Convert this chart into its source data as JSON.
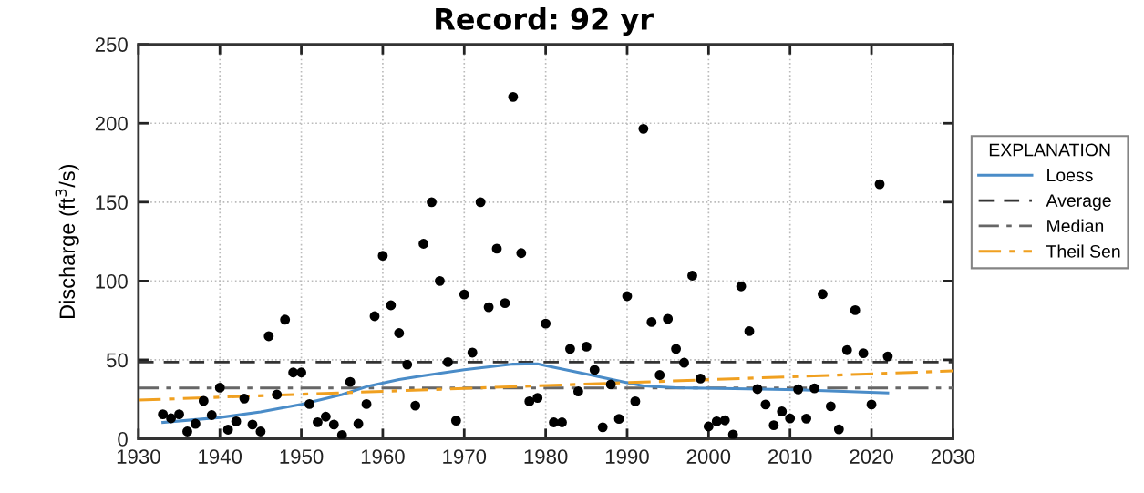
{
  "chart_data": {
    "type": "scatter",
    "title": "Record: 92 yr",
    "ylabel": "Discharge (ft$^{3}$/s)",
    "legend_title": "EXPLANATION",
    "xlim": [
      1930,
      2030
    ],
    "xticks": [
      1930,
      1940,
      1950,
      1960,
      1970,
      1980,
      1990,
      2000,
      2010,
      2020,
      2030
    ],
    "ylim": [
      0,
      250
    ],
    "yticks": [
      0,
      50,
      100,
      150,
      200,
      250
    ],
    "grid": true,
    "legend": "right",
    "series": [
      {
        "color": "#000000",
        "marker": "circle",
        "x": [
          1933,
          1934,
          1935,
          1936,
          1937,
          1938,
          1939,
          1940,
          1941,
          1942,
          1943,
          1944,
          1945,
          1946,
          1947,
          1948,
          1949,
          1950,
          1951,
          1952,
          1953,
          1954,
          1955,
          1956,
          1957,
          1958,
          1959,
          1960,
          1961,
          1962,
          1963,
          1964,
          1965,
          1966,
          1967,
          1968,
          1969,
          1970,
          1971,
          1972,
          1973,
          1974,
          1975,
          1976,
          1977,
          1978,
          1979,
          1980,
          1981,
          1982,
          1983,
          1984,
          1985,
          1986,
          1987,
          1988,
          1989,
          1990,
          1991,
          1992,
          1993,
          1994,
          1995,
          1996,
          1997,
          1998,
          1999,
          2000,
          2001,
          2002,
          2003,
          2004,
          2005,
          2006,
          2007,
          2008,
          2009,
          2010,
          2011,
          2012,
          2013,
          2014,
          2015,
          2016,
          2017,
          2018,
          2019,
          2020,
          2021,
          2022
        ],
        "values": [
          15.5,
          13,
          15.5,
          4.6,
          9.5,
          24,
          15,
          32.4,
          5.8,
          11,
          25.5,
          9,
          4.6,
          65,
          28,
          75.5,
          42,
          42,
          22,
          10.5,
          14,
          9,
          2.4,
          36,
          9.5,
          22,
          77.7,
          116,
          84.6,
          67,
          47,
          21,
          123.6,
          150,
          100,
          48.6,
          11.5,
          91.5,
          54.6,
          150,
          83.4,
          120.5,
          86,
          216.7,
          117.7,
          23.7,
          25.9,
          73,
          10.4,
          10.4,
          57,
          30,
          58.4,
          43.7,
          7.3,
          34.4,
          12.6,
          90.4,
          23.7,
          196.5,
          74,
          40.4,
          76,
          57,
          48.2,
          103.4,
          38.2,
          7.8,
          11,
          11.7,
          2.7,
          96.6,
          68.2,
          31.5,
          21.7,
          8.6,
          17.3,
          12.9,
          31.3,
          12.8,
          32,
          91.7,
          20.6,
          6,
          56.2,
          81.5,
          54.2,
          21.7,
          161.4,
          52.2
        ]
      },
      {
        "type": "line",
        "name": "Loess",
        "color": "#4a8cc8",
        "line_style": "solid",
        "x": [
          1933,
          1940,
          1945,
          1950,
          1955,
          1958,
          1962,
          1965,
          1970,
          1976,
          1979,
          1980,
          1985,
          1990,
          1992,
          1996,
          2000,
          2011,
          2022
        ],
        "values": [
          10.4,
          13.5,
          17,
          21.8,
          28,
          33,
          37.5,
          40,
          43.7,
          47.3,
          47.5,
          46.4,
          41,
          35.5,
          33.5,
          32.3,
          32,
          31,
          29.1
        ]
      },
      {
        "type": "line",
        "name": "Theil Sen",
        "color": "#f0a020",
        "line_style": "dashdot",
        "x": [
          1930,
          2030
        ],
        "values": [
          24.5,
          43
        ]
      }
    ],
    "ref_lines": [
      {
        "axis": "y",
        "value": 48.6,
        "label": "Average",
        "color": "#333333",
        "line_style": "dashed"
      },
      {
        "axis": "y",
        "value": 32.2,
        "label": "Median",
        "color": "#666666",
        "line_style": "dashdot"
      }
    ]
  }
}
